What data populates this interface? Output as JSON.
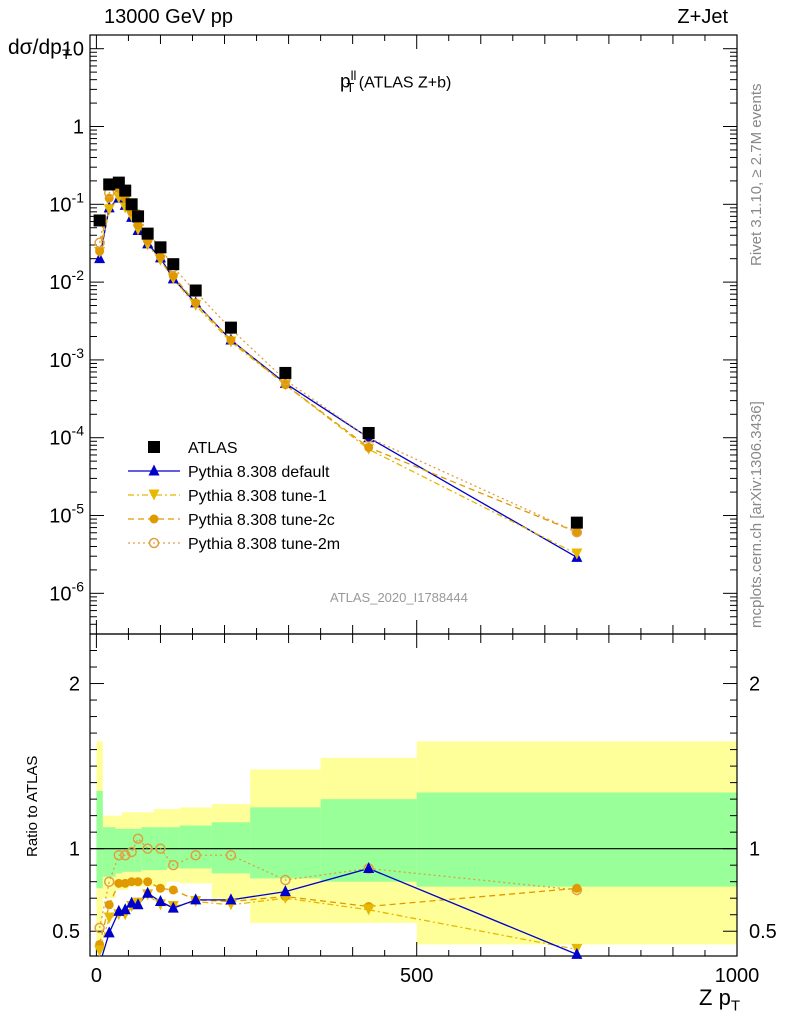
{
  "header": {
    "energy_label": "13000 GeV pp",
    "process_label": "Z+Jet"
  },
  "side_labels": {
    "rivet": "Rivet 3.1.10, ≥ 2.7M events",
    "source": "mcplots.cern.ch [arXiv:1306.3436]"
  },
  "watermark": "ATLAS_2020_I1788444",
  "plot_title": {
    "main": "p",
    "sup": "ll",
    "sub": "T",
    "rest": " (ATLAS Z+b)"
  },
  "axes": {
    "ylabel_top": "dσ/dp",
    "ylabel_top_sub": "T",
    "ylabel_ratio": "Ratio to ATLAS",
    "xlabel": "Z p",
    "xlabel_sub": "T"
  },
  "colors": {
    "atlas": "#000000",
    "default": "#0000cc",
    "tune1": "#e6b800",
    "tune2c": "#e09a00",
    "tune2m": "#e0a040",
    "band_yellow": "#ffff99",
    "band_green": "#99ff99"
  },
  "chart_data": [
    {
      "type": "scatter",
      "panel": "main",
      "xlim": [
        -10,
        1000
      ],
      "ylim": [
        3e-07,
        15
      ],
      "yscale": "log",
      "ytick_labels": [
        "10",
        "1",
        "10^-1",
        "10^-2",
        "10^-3",
        "10^-4",
        "10^-5",
        "10^-6"
      ],
      "legend_position": "lower-left",
      "x": [
        5,
        20,
        35,
        45,
        55,
        65,
        80,
        100,
        120,
        155,
        210,
        295,
        425,
        750
      ],
      "series": [
        {
          "name": "ATLAS",
          "marker": "square",
          "values": [
            0.062,
            0.18,
            0.19,
            0.15,
            0.1,
            0.07,
            0.042,
            0.028,
            0.017,
            0.0078,
            0.0026,
            0.00068,
            0.000115,
            8.1e-06
          ]
        },
        {
          "name": "Pythia 8.308 default",
          "marker": "triangle-up",
          "line": "solid",
          "values": [
            0.02,
            0.09,
            0.12,
            0.097,
            0.068,
            0.046,
            0.031,
            0.0205,
            0.011,
            0.0054,
            0.0018,
            0.0005,
            0.0001,
            2.9e-06
          ]
        },
        {
          "name": "Pythia 8.308 tune-1",
          "marker": "triangle-down",
          "line": "dashdot",
          "values": [
            0.024,
            0.085,
            0.12,
            0.09,
            0.07,
            0.047,
            0.03,
            0.019,
            0.011,
            0.005,
            0.0017,
            0.00048,
            7.1e-05,
            3.2e-06
          ]
        },
        {
          "name": "Pythia 8.308 tune-2c",
          "marker": "circle-filled",
          "line": "dashed",
          "values": [
            0.025,
            0.12,
            0.16,
            0.12,
            0.08,
            0.054,
            0.034,
            0.021,
            0.012,
            0.0054,
            0.0018,
            0.00048,
            7.5e-05,
            6.1e-06
          ]
        },
        {
          "name": "Pythia 8.308 tune-2m",
          "marker": "circle-open",
          "line": "dotted",
          "values": [
            0.032,
            0.14,
            0.18,
            0.145,
            0.1,
            0.074,
            0.042,
            0.028,
            0.0155,
            0.0075,
            0.0025,
            0.00055,
            0.0001,
            6.1e-06
          ]
        }
      ]
    },
    {
      "type": "line",
      "panel": "ratio",
      "xlim": [
        -10,
        1000
      ],
      "ylim": [
        0.35,
        2.3
      ],
      "ytick_labels": [
        "2",
        "1",
        "0.5"
      ],
      "xtick_labels": [
        "0",
        "500",
        "1000"
      ],
      "reference_line": 1,
      "bands": {
        "edges": [
          0,
          10,
          30,
          40,
          50,
          60,
          70,
          90,
          110,
          130,
          180,
          240,
          350,
          500,
          1000
        ],
        "yellow_lo": [
          0.38,
          0.7,
          0.75,
          0.75,
          0.77,
          0.77,
          0.77,
          0.77,
          0.8,
          0.79,
          0.68,
          0.55,
          0.55,
          0.42
        ],
        "yellow_hi": [
          1.65,
          1.2,
          1.2,
          1.22,
          1.22,
          1.22,
          1.22,
          1.24,
          1.24,
          1.25,
          1.27,
          1.48,
          1.55,
          1.65
        ],
        "green_lo": [
          0.76,
          0.83,
          0.85,
          0.86,
          0.86,
          0.86,
          0.87,
          0.87,
          0.88,
          0.88,
          0.85,
          0.82,
          0.8,
          0.77
        ],
        "green_hi": [
          1.35,
          1.13,
          1.12,
          1.12,
          1.12,
          1.12,
          1.13,
          1.13,
          1.13,
          1.14,
          1.16,
          1.25,
          1.3,
          1.34
        ]
      },
      "x": [
        5,
        20,
        35,
        45,
        55,
        65,
        80,
        100,
        120,
        155,
        210,
        295,
        425,
        750
      ],
      "series": [
        {
          "name": "Pythia 8.308 default",
          "values": [
            0.3,
            0.49,
            0.62,
            0.63,
            0.67,
            0.66,
            0.73,
            0.68,
            0.64,
            0.69,
            0.69,
            0.74,
            0.88,
            0.36
          ]
        },
        {
          "name": "Pythia 8.308 tune-1",
          "values": [
            0.38,
            0.58,
            0.6,
            0.6,
            0.65,
            0.67,
            0.72,
            0.66,
            0.65,
            0.68,
            0.66,
            0.7,
            0.63,
            0.39
          ]
        },
        {
          "name": "Pythia 8.308 tune-2c",
          "values": [
            0.42,
            0.66,
            0.79,
            0.79,
            0.8,
            0.8,
            0.8,
            0.76,
            0.75,
            0.69,
            0.68,
            0.71,
            0.65,
            0.76
          ]
        },
        {
          "name": "Pythia 8.308 tune-2m",
          "values": [
            0.52,
            0.8,
            0.96,
            0.96,
            0.98,
            1.06,
            1.0,
            1.0,
            0.9,
            0.96,
            0.96,
            0.81,
            0.88,
            0.75
          ]
        }
      ]
    }
  ]
}
